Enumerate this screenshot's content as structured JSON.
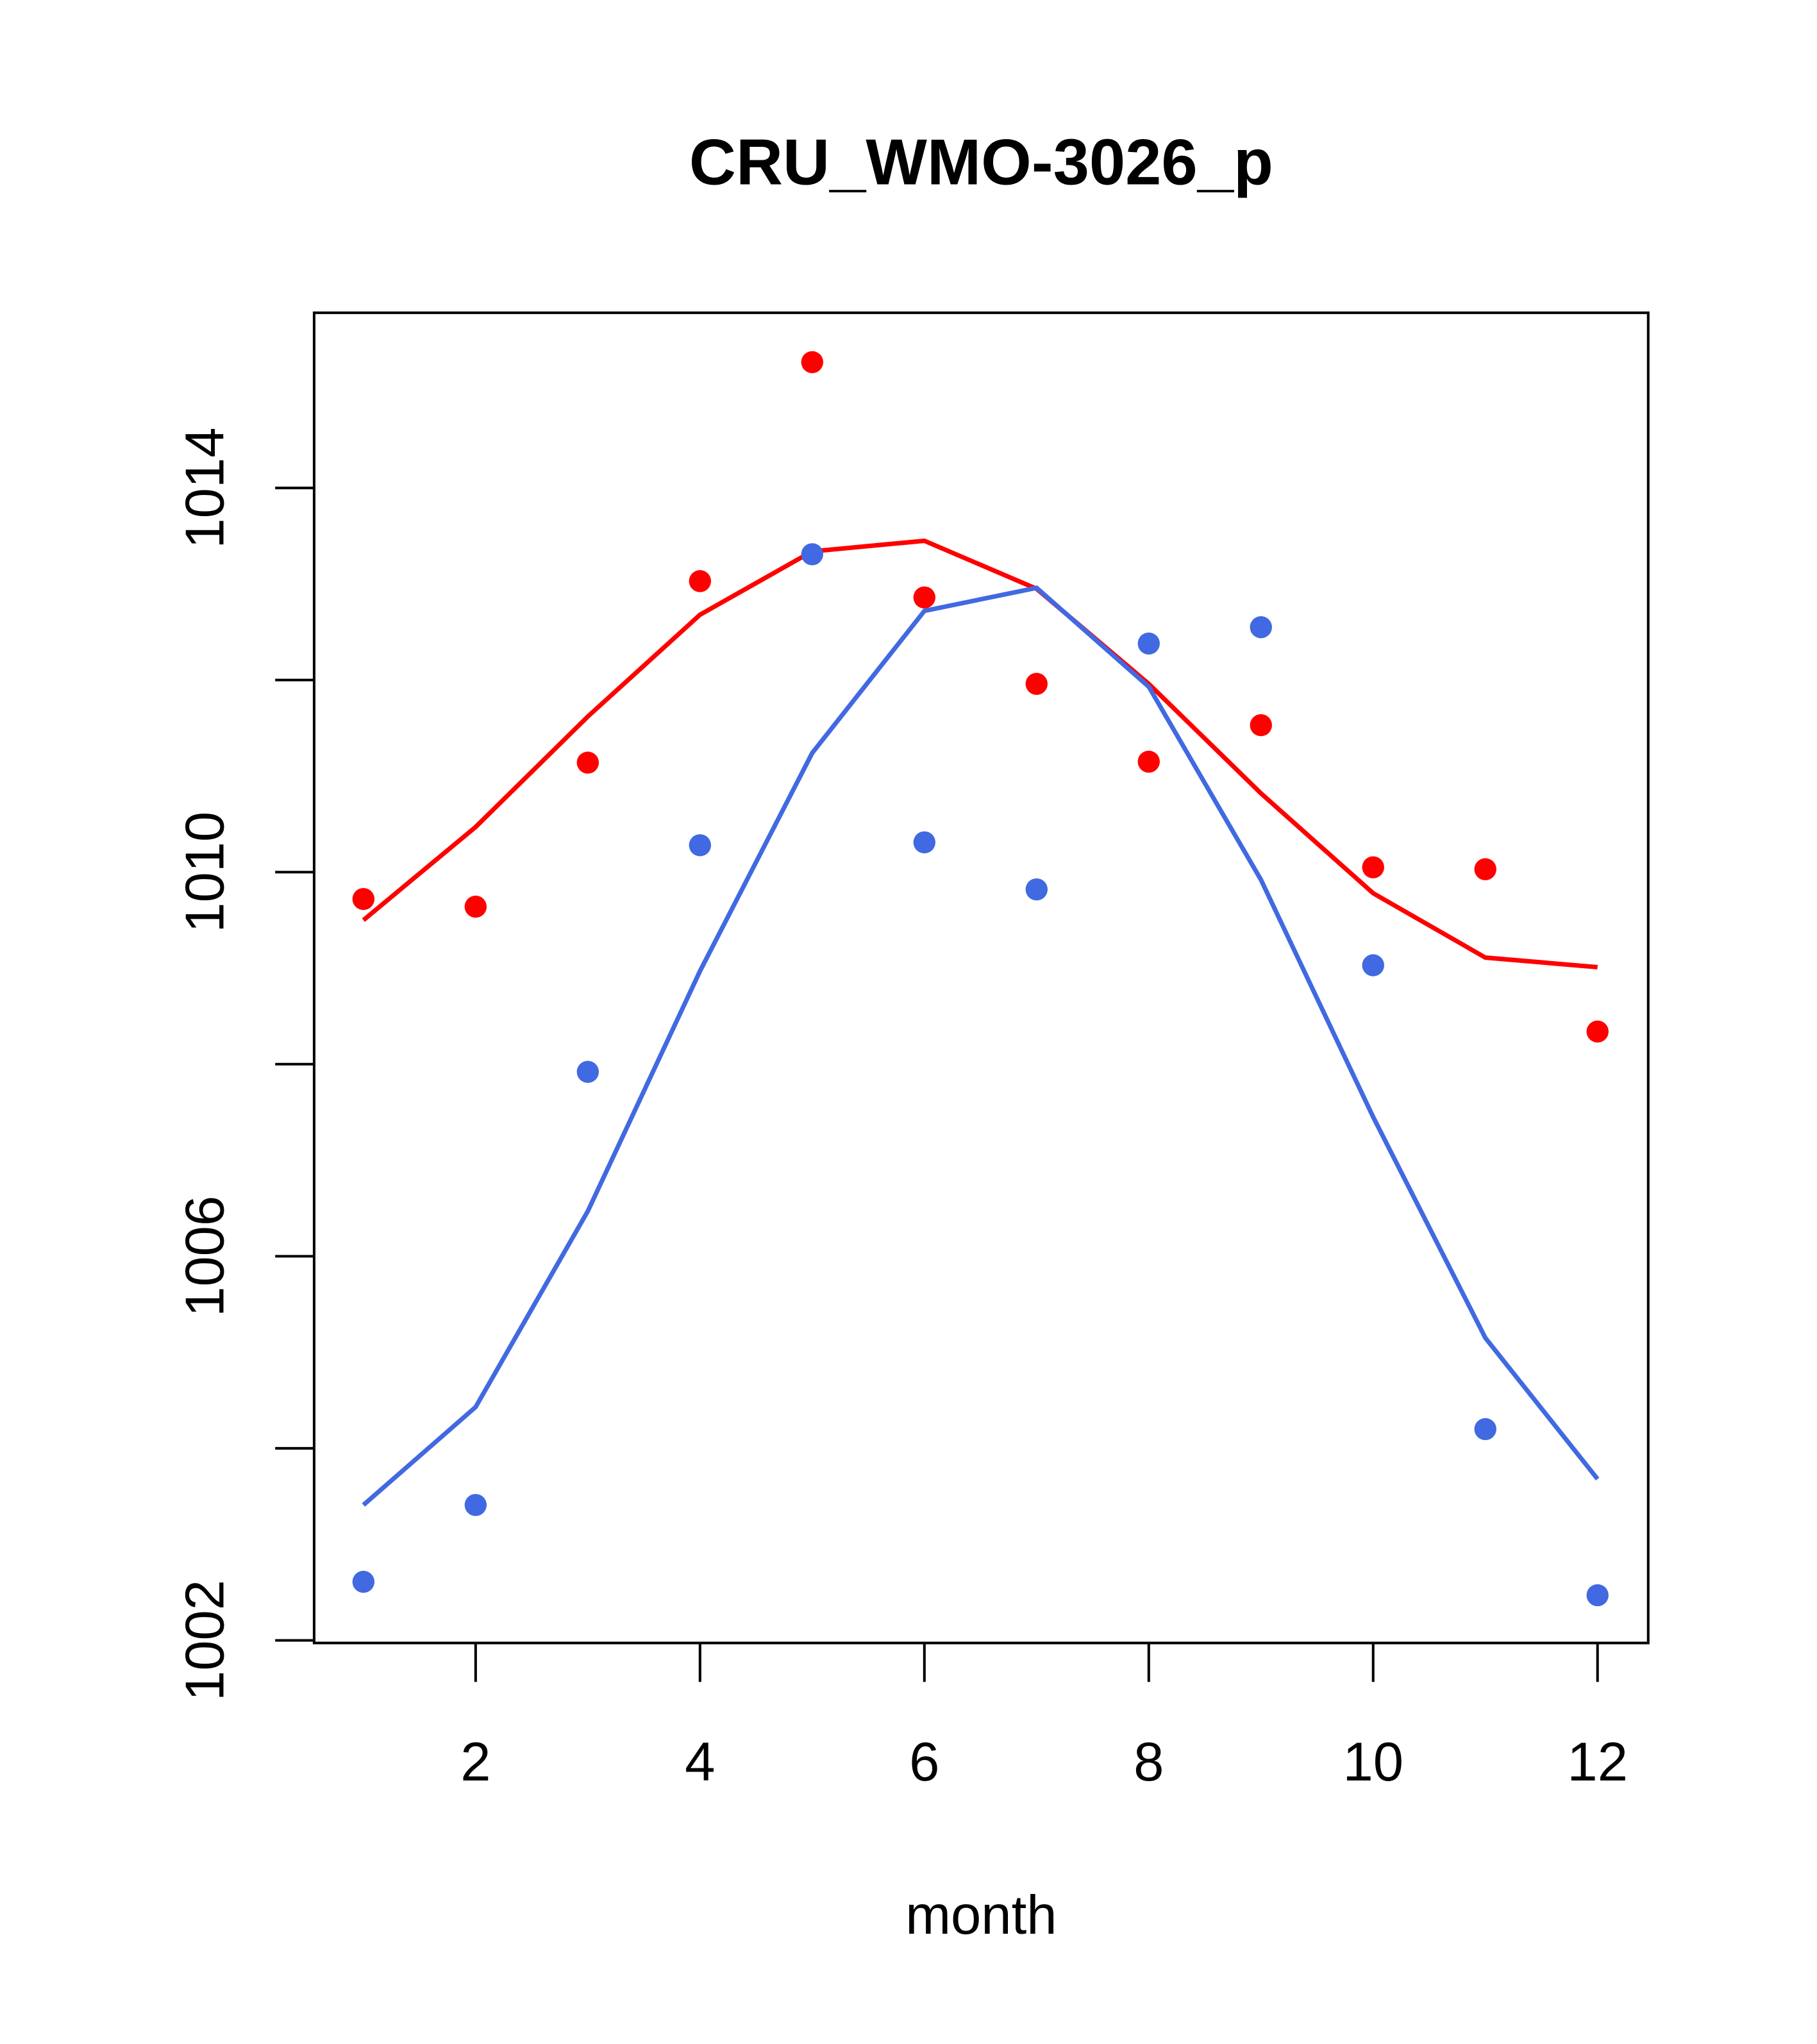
{
  "chart_data": {
    "type": "line",
    "title": "CRU_WMO-3026_p",
    "xlabel": "month",
    "ylabel": "",
    "xlim": [
      0.56,
      12.44
    ],
    "ylim": [
      1002,
      1015.85
    ],
    "x_ticks": [
      2,
      4,
      6,
      8,
      10,
      12
    ],
    "x_tick_labels": [
      "2",
      "4",
      "6",
      "8",
      "10",
      "12"
    ],
    "y_ticks": [
      1002,
      1004,
      1006,
      1008,
      1010,
      1012,
      1014
    ],
    "y_tick_labels": [
      "1002",
      "",
      "1006",
      "",
      "1010",
      "",
      "1014"
    ],
    "grid": false,
    "x": [
      1,
      2,
      3,
      4,
      5,
      6,
      7,
      8,
      9,
      10,
      11,
      12
    ],
    "series": [
      {
        "name": "red points",
        "kind": "points",
        "color": "#ff0000",
        "values": [
          1009.72,
          1009.64,
          1011.14,
          1013.03,
          1015.31,
          1012.86,
          1011.96,
          1011.15,
          1011.53,
          1010.05,
          1010.03,
          1008.34
        ]
      },
      {
        "name": "red line",
        "kind": "line",
        "color": "#ff0000",
        "values": [
          1009.5,
          1010.47,
          1011.62,
          1012.68,
          1013.34,
          1013.45,
          1012.95,
          1011.96,
          1010.82,
          1009.78,
          1009.11,
          1009.01
        ]
      },
      {
        "name": "blue points",
        "kind": "points",
        "color": "#4169e1",
        "values": [
          1002.61,
          1003.41,
          1007.92,
          1010.28,
          1013.31,
          1010.31,
          1009.82,
          1012.38,
          1012.55,
          1009.03,
          1004.2,
          1002.47
        ]
      },
      {
        "name": "blue line",
        "kind": "line",
        "color": "#4169e1",
        "values": [
          1003.41,
          1004.43,
          1006.47,
          1008.97,
          1011.24,
          1012.72,
          1012.96,
          1011.93,
          1009.92,
          1007.45,
          1005.15,
          1003.68
        ]
      }
    ]
  }
}
